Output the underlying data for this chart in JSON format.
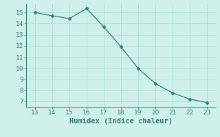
{
  "x": [
    13,
    14,
    15,
    16,
    17,
    18,
    19,
    20,
    21,
    22,
    23
  ],
  "y": [
    15.0,
    14.7,
    14.45,
    15.35,
    13.7,
    11.9,
    9.95,
    8.6,
    7.75,
    7.2,
    6.9
  ],
  "xlim": [
    12.5,
    23.5
  ],
  "ylim": [
    6.5,
    15.75
  ],
  "xticks": [
    13,
    14,
    15,
    16,
    17,
    18,
    19,
    20,
    21,
    22,
    23
  ],
  "yticks": [
    7,
    8,
    9,
    10,
    11,
    12,
    13,
    14,
    15
  ],
  "xlabel": "Humidex (Indice chaleur)",
  "line_color": "#2e7d6e",
  "marker": "D",
  "marker_size": 2.5,
  "bg_color": "#cff0ea",
  "grid_color": "#aaddd6",
  "tick_fontsize": 6.5,
  "label_fontsize": 7.5
}
